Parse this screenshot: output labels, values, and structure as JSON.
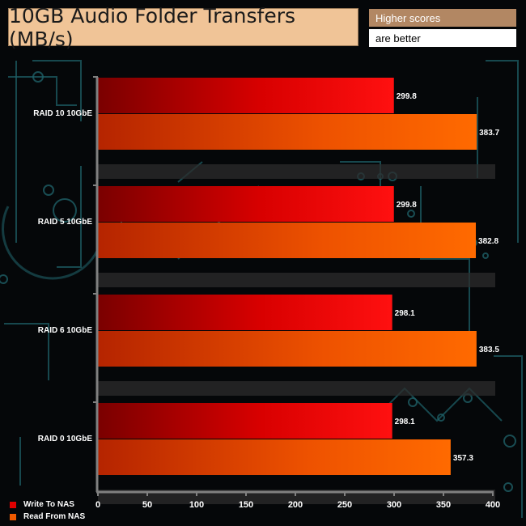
{
  "chart_data": {
    "type": "bar",
    "orientation": "horizontal",
    "title": "10GB Audio Folder Transfers (MB/s)",
    "note": [
      "Higher scores",
      "are better"
    ],
    "categories": [
      "RAID 10 10GbE",
      "RAID 5 10GbE",
      "RAID 6 10GbE",
      "RAID 0 10GbE"
    ],
    "series": [
      {
        "name": "Write To NAS",
        "values": [
          299.8,
          299.8,
          298.1,
          298.1
        ],
        "color": "#e00000"
      },
      {
        "name": "Read From NAS",
        "values": [
          383.7,
          382.8,
          383.5,
          357.3
        ],
        "color": "#f05a00"
      }
    ],
    "xlim": [
      0,
      400
    ],
    "xticks": [
      0,
      50,
      100,
      150,
      200,
      250,
      300,
      350,
      400
    ],
    "grid": false,
    "legend_position": "bottom-left",
    "colors": {
      "background": "#050709",
      "circuit": "#1e5f66",
      "axis": "#808080",
      "title_box": "#f0c497",
      "note_top": "#b28763",
      "note_bottom": "#ffffff",
      "text": "#ffffff"
    }
  }
}
